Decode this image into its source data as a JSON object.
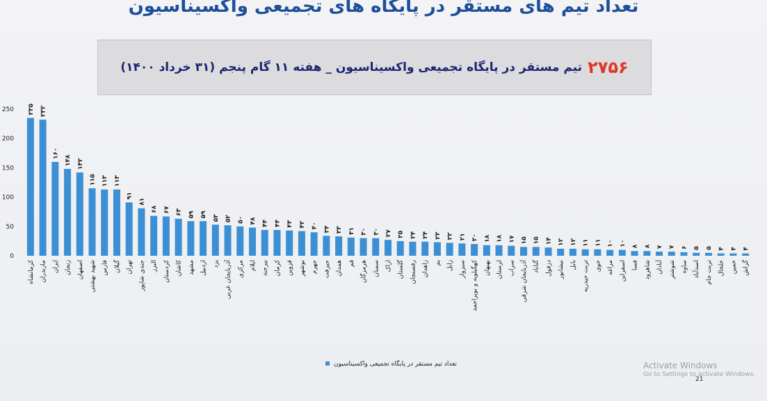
{
  "chart_data": {
    "type": "bar",
    "title": "تعداد تیم های مستقر در پایگاه های تجمیعی واکسیناسیون",
    "highlight": "۲۷۵۶",
    "subtitle": "تیم مستقر در پایگاه تجمیعی واکسیناسیون _ هفته ۱۱ گام پنجم (۳۱ خرداد ۱۴۰۰)",
    "categories": [
      "کرمانشاه",
      "مازندران",
      "ایران",
      "زنجان",
      "اصفهان",
      "شهید بهشتی",
      "فارس",
      "گیلان",
      "تهران",
      "جندی شاپور",
      "البرز",
      "کردستان",
      "کاشان",
      "مشهد",
      "اردبیل",
      "یزد",
      "آذربایجان غربی",
      "مرکزی",
      "ایلام",
      "بیرجند",
      "کرمان",
      "قزوین",
      "بوشهر",
      "جهرم",
      "جیرفت",
      "همدان",
      "قم",
      "هرمزگان",
      "سمنان",
      "اراک",
      "گلستان",
      "رفسنجان",
      "زاهدان",
      "بم",
      "زابل",
      "سبزوار",
      "کهگیلویه و بویراحمد",
      "بهبهان",
      "لرستان",
      "سراب",
      "آذربایجان شرقی",
      "گناباد",
      "دزفول",
      "نیشابور",
      "بابل",
      "تربت حیدریه",
      "خوی",
      "مراغه",
      "اسفراین",
      "فسا",
      "شاهرود",
      "آبادان",
      "شوشتر",
      "ساوه",
      "اسدآباد",
      "تربت جام",
      "خلخال",
      "خمین",
      "گراش"
    ],
    "values": [
      235,
      232,
      160,
      148,
      142,
      115,
      113,
      113,
      91,
      81,
      68,
      67,
      63,
      59,
      59,
      53,
      52,
      50,
      48,
      44,
      44,
      43,
      42,
      40,
      34,
      33,
      31,
      30,
      30,
      27,
      25,
      24,
      24,
      23,
      22,
      21,
      20,
      18,
      18,
      17,
      15,
      15,
      14,
      12,
      12,
      11,
      11,
      10,
      10,
      8,
      8,
      7,
      7,
      6,
      5,
      5,
      4,
      4,
      4
    ],
    "value_labels": [
      "۲۳۵",
      "۲۳۲",
      "۱۶۰",
      "۱۴۸",
      "۱۴۲",
      "۱۱۵",
      "۱۱۳",
      "۱۱۳",
      "۹۱",
      "۸۱",
      "۶۸",
      "۶۷",
      "۶۳",
      "۵۹",
      "۵۹",
      "۵۳",
      "۵۲",
      "۵۰",
      "۴۸",
      "۴۴",
      "۴۴",
      "۴۳",
      "۴۲",
      "۴۰",
      "۳۴",
      "۳۳",
      "۳۱",
      "۳۰",
      "۳۰",
      "۲۷",
      "۲۵",
      "۲۴",
      "۲۴",
      "۲۳",
      "۲۲",
      "۲۱",
      "۲۰",
      "۱۸",
      "۱۸",
      "۱۷",
      "۱۵",
      "۱۵",
      "۱۴",
      "۱۲",
      "۱۲",
      "۱۱",
      "۱۱",
      "۱۰",
      "۱۰",
      "۸",
      "۸",
      "۷",
      "۷",
      "۶",
      "۵",
      "۵",
      "۴",
      "۴",
      "۴"
    ],
    "series_name": "تعداد تیم مستقر در پایگاه تجمیعی واکسیناسیون",
    "color": "#3b8fd4",
    "ylim": [
      0,
      250
    ],
    "yticks": [
      0,
      50,
      100,
      150,
      200,
      250
    ],
    "grid": false,
    "watermark": [
      "Activate Windows",
      "Go to Settings to activate Windows."
    ],
    "page_number": "21"
  }
}
